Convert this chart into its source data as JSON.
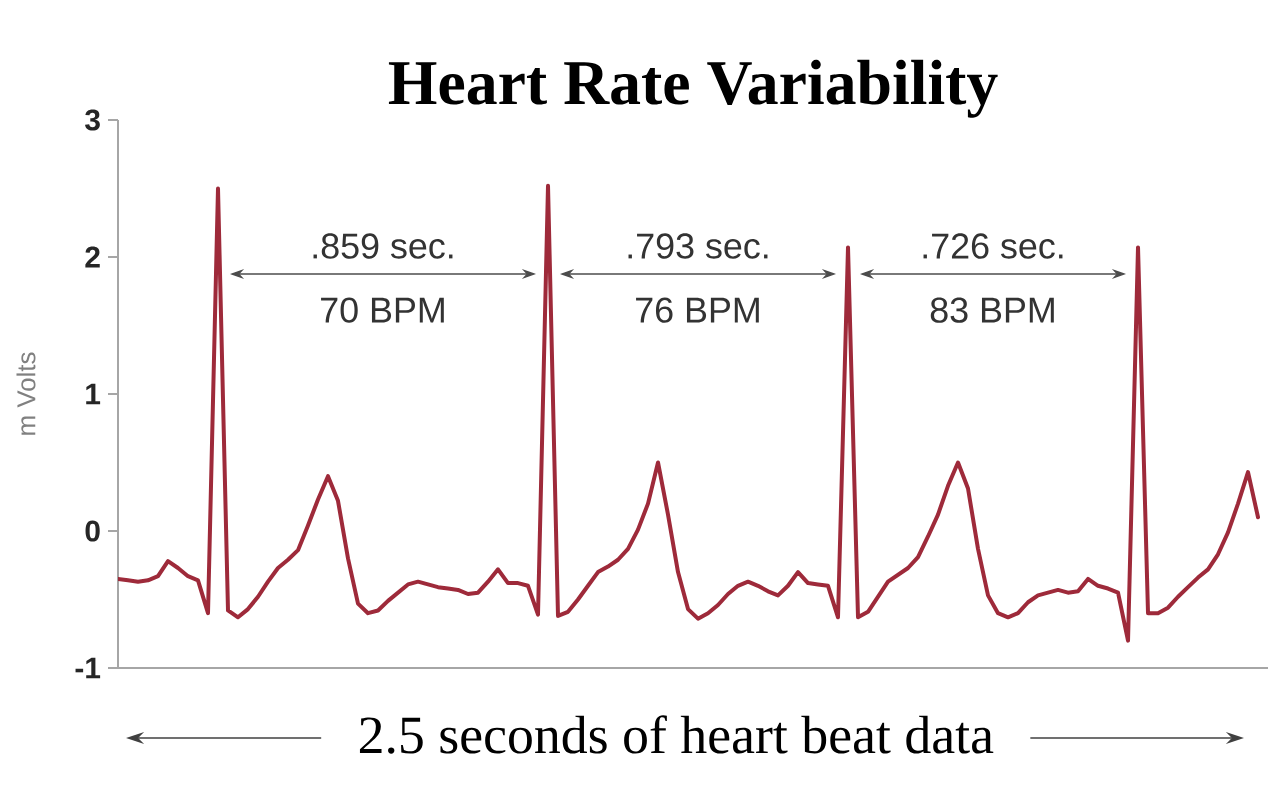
{
  "chart_data": {
    "type": "line",
    "title": "Heart Rate Variability",
    "xlabel": "2.5 seconds of heart beat data",
    "ylabel": "m Volts",
    "categories": [
      null,
      null,
      null,
      null,
      null,
      null,
      null,
      null,
      null,
      null,
      null,
      null,
      null,
      null,
      null,
      null,
      null,
      null,
      null,
      null,
      null,
      null,
      null,
      null,
      null,
      null,
      null,
      null,
      null,
      null,
      null,
      null,
      null,
      null,
      null,
      null,
      null,
      null,
      null,
      null,
      null,
      null,
      null,
      null,
      null,
      null,
      null,
      null,
      null,
      null,
      null,
      null,
      null,
      null,
      null,
      null,
      null,
      null,
      null,
      null,
      null,
      null,
      null,
      null,
      null,
      null,
      null,
      null,
      null,
      null,
      null,
      null,
      null,
      null,
      null,
      null,
      null,
      null,
      null,
      null,
      null,
      null,
      null,
      null,
      null,
      null,
      null,
      null,
      null,
      null,
      null,
      null,
      null,
      null,
      null,
      null,
      null,
      null,
      null,
      null,
      null,
      null,
      null,
      null,
      null,
      null,
      null,
      null,
      null,
      null,
      null,
      null,
      null,
      null,
      null
    ],
    "series": [
      {
        "color": "#9e2a3a",
        "values": [
          -0.35,
          -0.36,
          -0.37,
          -0.36,
          -0.33,
          -0.22,
          -0.27,
          -0.33,
          -0.36,
          -0.6,
          2.5,
          -0.58,
          -0.63,
          -0.57,
          -0.48,
          -0.37,
          -0.27,
          -0.21,
          -0.14,
          0.04,
          0.23,
          0.4,
          0.22,
          -0.2,
          -0.53,
          -0.6,
          -0.58,
          -0.51,
          -0.45,
          -0.39,
          -0.37,
          -0.39,
          -0.41,
          -0.42,
          -0.43,
          -0.46,
          -0.45,
          -0.37,
          -0.28,
          -0.38,
          -0.38,
          -0.4,
          -0.61,
          2.52,
          -0.62,
          -0.59,
          -0.5,
          -0.4,
          -0.3,
          -0.26,
          -0.21,
          -0.13,
          0.01,
          0.2,
          0.5,
          0.12,
          -0.3,
          -0.57,
          -0.64,
          -0.6,
          -0.54,
          -0.46,
          -0.4,
          -0.37,
          -0.4,
          -0.44,
          -0.47,
          -0.4,
          -0.3,
          -0.38,
          -0.39,
          -0.4,
          -0.63,
          2.07,
          -0.63,
          -0.59,
          -0.48,
          -0.37,
          -0.32,
          -0.27,
          -0.19,
          -0.04,
          0.12,
          0.33,
          0.5,
          0.31,
          -0.13,
          -0.47,
          -0.6,
          -0.63,
          -0.6,
          -0.52,
          -0.47,
          -0.45,
          -0.43,
          -0.45,
          -0.44,
          -0.35,
          -0.4,
          -0.42,
          -0.45,
          -0.8,
          2.07,
          -0.6,
          -0.6,
          -0.56,
          -0.48,
          -0.41,
          -0.34,
          -0.28,
          -0.17,
          -0.01,
          0.2,
          0.43,
          0.1
        ]
      }
    ],
    "ylim": [
      -1,
      3
    ],
    "yticks": [
      -1,
      0,
      1,
      2,
      3
    ],
    "marker": "none",
    "line_style": "solid",
    "annotations": [
      ".859 sec.",
      "70 BPM",
      ".793 sec.",
      "76 BPM",
      ".726 sec.",
      "83 BPM"
    ]
  }
}
